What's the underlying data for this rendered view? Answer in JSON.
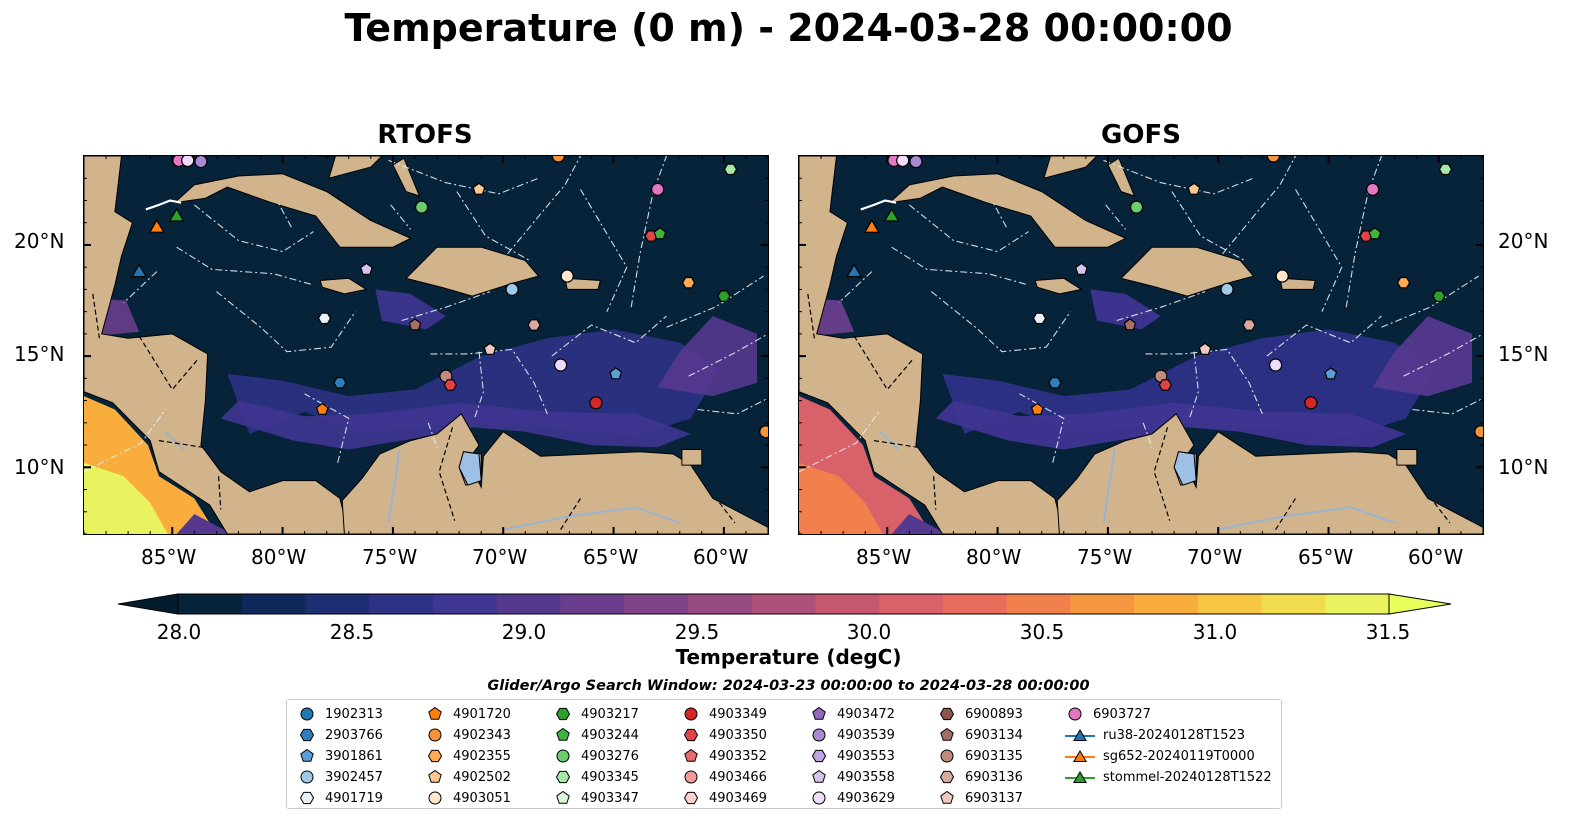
{
  "title": "Temperature (0 m) - 2024-03-28 00:00:00",
  "panels": [
    {
      "title": "RTOFS",
      "variant": "rtofs"
    },
    {
      "title": "GOFS",
      "variant": "gofs"
    }
  ],
  "axes": {
    "lon_ticks": [
      "85°W",
      "80°W",
      "75°W",
      "70°W",
      "65°W",
      "60°W"
    ],
    "lat_ticks": [
      "20°N",
      "15°N",
      "10°N"
    ],
    "lon_range": [
      -89,
      -58
    ],
    "lat_range": [
      7,
      24
    ]
  },
  "colorbar": {
    "label": "Temperature (degC)",
    "ticks": [
      "28.0",
      "28.5",
      "29.0",
      "29.5",
      "30.0",
      "30.5",
      "31.0",
      "31.5"
    ],
    "range": [
      28.0,
      31.5
    ],
    "colors": [
      "#05233a",
      "#0f2a5a",
      "#1d2f72",
      "#2e3286",
      "#3f3592",
      "#55398f",
      "#6a3e8c",
      "#7f4488",
      "#974b82",
      "#ae507a",
      "#c5576f",
      "#d8616a",
      "#e86d5c",
      "#f2804d",
      "#f6963f",
      "#f8ad3c",
      "#f6c542",
      "#f1dc4e",
      "#e8f35f"
    ],
    "extend_under": "#031d2f",
    "extend_over": "#e8ff5a"
  },
  "colors": {
    "land": "#d2b48c",
    "ocean_deep": "#06233a",
    "lake": "#9ec0e4",
    "river": "#99b4d0"
  },
  "legend": {
    "title": "Glider/Argo Search Window: 2024-03-23 00:00:00 to 2024-03-28 00:00:00",
    "items": [
      {
        "label": "1902313",
        "marker": "circle",
        "color": "#1f77b4"
      },
      {
        "label": "2903766",
        "marker": "hexagon",
        "color": "#2e80bc"
      },
      {
        "label": "3901861",
        "marker": "pentagon",
        "color": "#5aa0d8"
      },
      {
        "label": "3902457",
        "marker": "circle",
        "color": "#9ecae9"
      },
      {
        "label": "4901719",
        "marker": "hexagon",
        "color": "#e8f2fb"
      },
      {
        "label": "4901720",
        "marker": "pentagon",
        "color": "#ff7f0e"
      },
      {
        "label": "4902343",
        "marker": "circle",
        "color": "#f5923a"
      },
      {
        "label": "4902355",
        "marker": "hexagon",
        "color": "#ffaa55"
      },
      {
        "label": "4902502",
        "marker": "pentagon",
        "color": "#ffc890"
      },
      {
        "label": "4903051",
        "marker": "circle",
        "color": "#ffe6cc"
      },
      {
        "label": "4903217",
        "marker": "hexagon",
        "color": "#2ca02c"
      },
      {
        "label": "4903244",
        "marker": "pentagon",
        "color": "#3db63d"
      },
      {
        "label": "4903276",
        "marker": "circle",
        "color": "#6ccd6c"
      },
      {
        "label": "4903345",
        "marker": "hexagon",
        "color": "#a6e8a6"
      },
      {
        "label": "4903347",
        "marker": "pentagon",
        "color": "#dcf8dc"
      },
      {
        "label": "4903349",
        "marker": "circle",
        "color": "#d62728"
      },
      {
        "label": "4903350",
        "marker": "hexagon",
        "color": "#e04445"
      },
      {
        "label": "4903352",
        "marker": "pentagon",
        "color": "#ea6a6a"
      },
      {
        "label": "4903466",
        "marker": "circle",
        "color": "#f49b9a"
      },
      {
        "label": "4903469",
        "marker": "hexagon",
        "color": "#fcd0cf"
      },
      {
        "label": "4903472",
        "marker": "pentagon",
        "color": "#9467bd"
      },
      {
        "label": "4903539",
        "marker": "circle",
        "color": "#a98ad2"
      },
      {
        "label": "4903553",
        "marker": "hexagon",
        "color": "#c0a4e0"
      },
      {
        "label": "4903558",
        "marker": "pentagon",
        "color": "#d7c4ee"
      },
      {
        "label": "4903629",
        "marker": "circle",
        "color": "#eedcfb"
      },
      {
        "label": "6900893",
        "marker": "hexagon",
        "color": "#8c564b"
      },
      {
        "label": "6903134",
        "marker": "pentagon",
        "color": "#a66f63"
      },
      {
        "label": "6903135",
        "marker": "circle",
        "color": "#c08c80"
      },
      {
        "label": "6903136",
        "marker": "hexagon",
        "color": "#d8aaa0"
      },
      {
        "label": "6903137",
        "marker": "pentagon",
        "color": "#f0cac2"
      },
      {
        "label": "6903727",
        "marker": "circle",
        "color": "#e377c2"
      },
      {
        "label": "ru38-20240128T1523",
        "marker": "line-triangle",
        "color": "#1f77b4"
      },
      {
        "label": "sg652-20240119T0000",
        "marker": "line-triangle",
        "color": "#ff7f0e"
      },
      {
        "label": "stommel-20240128T1522",
        "marker": "line-triangle",
        "color": "#2ca02c"
      }
    ]
  },
  "floats": [
    {
      "id": "6903727",
      "lon": -84.7,
      "lat": 23.8,
      "color": "#e377c2",
      "marker": "circle"
    },
    {
      "id": "4903629",
      "lon": -84.3,
      "lat": 23.8,
      "color": "#eedcfb",
      "marker": "circle"
    },
    {
      "id": "4903539",
      "lon": -83.7,
      "lat": 23.75,
      "color": "#a98ad2",
      "marker": "circle"
    },
    {
      "id": "4902343",
      "lon": -67.5,
      "lat": 24.0,
      "color": "#f5923a",
      "marker": "circle"
    },
    {
      "id": "4902502",
      "lon": -71.1,
      "lat": 22.5,
      "color": "#ffc890",
      "marker": "pentagon"
    },
    {
      "id": "4903276",
      "lon": -73.7,
      "lat": 21.7,
      "color": "#6ccd6c",
      "marker": "circle"
    },
    {
      "id": "6903727",
      "lon": -63.0,
      "lat": 22.5,
      "color": "#e377c2",
      "marker": "circle"
    },
    {
      "id": "4903345",
      "lon": -59.7,
      "lat": 23.4,
      "color": "#a6e8a6",
      "marker": "hexagon"
    },
    {
      "id": "4903350",
      "lon": -63.3,
      "lat": 20.4,
      "color": "#e04445",
      "marker": "hexagon"
    },
    {
      "id": "4903244",
      "lon": -62.9,
      "lat": 20.5,
      "color": "#3db63d",
      "marker": "pentagon"
    },
    {
      "id": "4903558",
      "lon": -76.2,
      "lat": 18.9,
      "color": "#d7c4ee",
      "marker": "pentagon"
    },
    {
      "id": "4903051",
      "lon": -67.1,
      "lat": 18.6,
      "color": "#ffe6cc",
      "marker": "circle"
    },
    {
      "id": "4902355",
      "lon": -61.6,
      "lat": 18.3,
      "color": "#ffaa55",
      "marker": "hexagon"
    },
    {
      "id": "3902457",
      "lon": -69.6,
      "lat": 18.0,
      "color": "#9ecae9",
      "marker": "circle"
    },
    {
      "id": "4903217",
      "lon": -60.0,
      "lat": 17.7,
      "color": "#2ca02c",
      "marker": "hexagon"
    },
    {
      "id": "4901719",
      "lon": -78.1,
      "lat": 16.7,
      "color": "#e8f2fb",
      "marker": "hexagon"
    },
    {
      "id": "6903134",
      "lon": -74.0,
      "lat": 16.4,
      "color": "#a66f63",
      "marker": "pentagon"
    },
    {
      "id": "6903136",
      "lon": -68.6,
      "lat": 16.4,
      "color": "#d8aaa0",
      "marker": "hexagon"
    },
    {
      "id": "6903137",
      "lon": -70.6,
      "lat": 15.3,
      "color": "#f0cac2",
      "marker": "pentagon"
    },
    {
      "id": "4903629",
      "lon": -67.4,
      "lat": 14.6,
      "color": "#eedcfb",
      "marker": "circle"
    },
    {
      "id": "3901861",
      "lon": -64.9,
      "lat": 14.2,
      "color": "#5aa0d8",
      "marker": "pentagon"
    },
    {
      "id": "6903135",
      "lon": -72.6,
      "lat": 14.1,
      "color": "#c08c80",
      "marker": "circle"
    },
    {
      "id": "4903350",
      "lon": -72.4,
      "lat": 13.7,
      "color": "#e04445",
      "marker": "hexagon"
    },
    {
      "id": "2903766",
      "lon": -77.4,
      "lat": 13.8,
      "color": "#2e80bc",
      "marker": "hexagon"
    },
    {
      "id": "4901720",
      "lon": -78.2,
      "lat": 12.6,
      "color": "#ff7f0e",
      "marker": "pentagon"
    },
    {
      "id": "4903349",
      "lon": -65.8,
      "lat": 12.9,
      "color": "#d62728",
      "marker": "circle"
    },
    {
      "id": "4902343",
      "lon": -58.1,
      "lat": 11.6,
      "color": "#f5923a",
      "marker": "circle"
    }
  ],
  "gliders": [
    {
      "id": "sg652-20240119T0000",
      "lon": -85.7,
      "lat": 20.8,
      "color": "#ff7f0e"
    },
    {
      "id": "stommel-20240128T1522",
      "lon": -84.8,
      "lat": 21.3,
      "color": "#2ca02c"
    },
    {
      "id": "ru38-20240128T1523",
      "lon": -86.5,
      "lat": 18.8,
      "color": "#1f77b4"
    }
  ]
}
